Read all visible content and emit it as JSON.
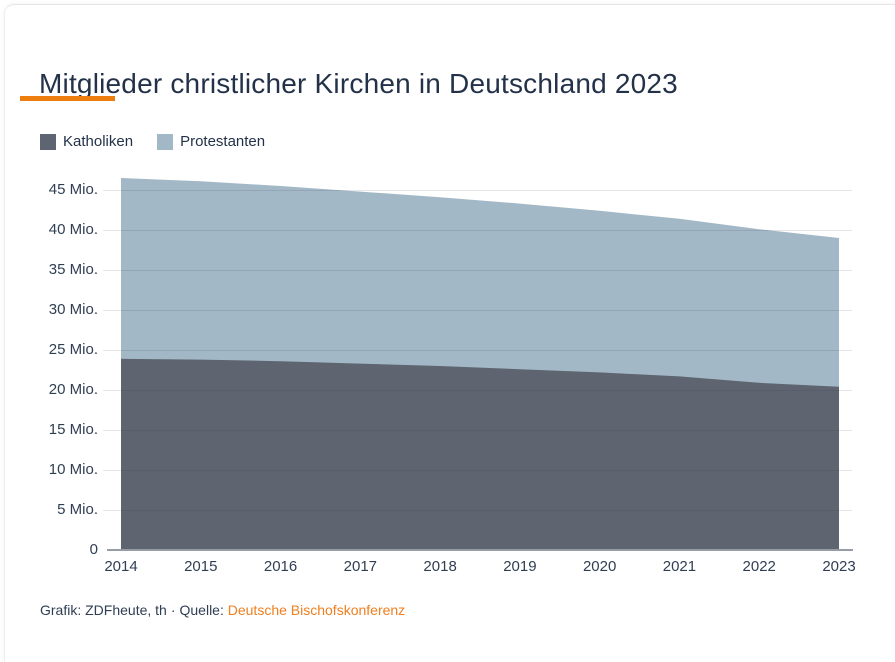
{
  "card": {
    "title": "Mitglieder christlicher Kirchen in Deutschland 2023",
    "accent_color": "#ee7d0f"
  },
  "legend": {
    "items": [
      {
        "label": "Katholiken",
        "color": "#5e6570"
      },
      {
        "label": "Protestanten",
        "color": "#a3b8c6"
      }
    ]
  },
  "footer": {
    "credit": "Grafik: ZDFheute, th",
    "separator": "·",
    "source_label": "Quelle:",
    "source_link": "Deutsche Bischofskonferenz",
    "link_color": "#ef7f1f"
  },
  "chart_data": {
    "type": "area",
    "stacked": true,
    "title": "Mitglieder christlicher Kirchen in Deutschland 2023",
    "x": [
      "2014",
      "2015",
      "2016",
      "2017",
      "2018",
      "2019",
      "2020",
      "2021",
      "2022",
      "2023"
    ],
    "series": [
      {
        "name": "Katholiken",
        "color": "#5e6570",
        "values": [
          23.9,
          23.8,
          23.6,
          23.3,
          23.0,
          22.6,
          22.2,
          21.7,
          20.9,
          20.4
        ]
      },
      {
        "name": "Protestanten",
        "color": "#a3b8c6",
        "values": [
          22.6,
          22.3,
          21.9,
          21.5,
          21.1,
          20.7,
          20.2,
          19.7,
          19.2,
          18.6
        ]
      }
    ],
    "totals": [
      46.5,
      46.1,
      45.5,
      44.8,
      44.1,
      43.3,
      42.4,
      41.4,
      40.1,
      39.0
    ],
    "unit": "Mio.",
    "ylim": [
      0,
      47
    ],
    "grid": true,
    "legend_position": "top-left",
    "y_ticks": [
      {
        "value": 45,
        "label": "45 Mio."
      },
      {
        "value": 40,
        "label": "40 Mio."
      },
      {
        "value": 35,
        "label": "35 Mio."
      },
      {
        "value": 30,
        "label": "30 Mio."
      },
      {
        "value": 25,
        "label": "25 Mio."
      },
      {
        "value": 20,
        "label": "20 Mio."
      },
      {
        "value": 15,
        "label": "15 Mio."
      },
      {
        "value": 10,
        "label": "10 Mio."
      },
      {
        "value": 5,
        "label": "5 Mio."
      },
      {
        "value": 0,
        "label": "0"
      }
    ]
  }
}
